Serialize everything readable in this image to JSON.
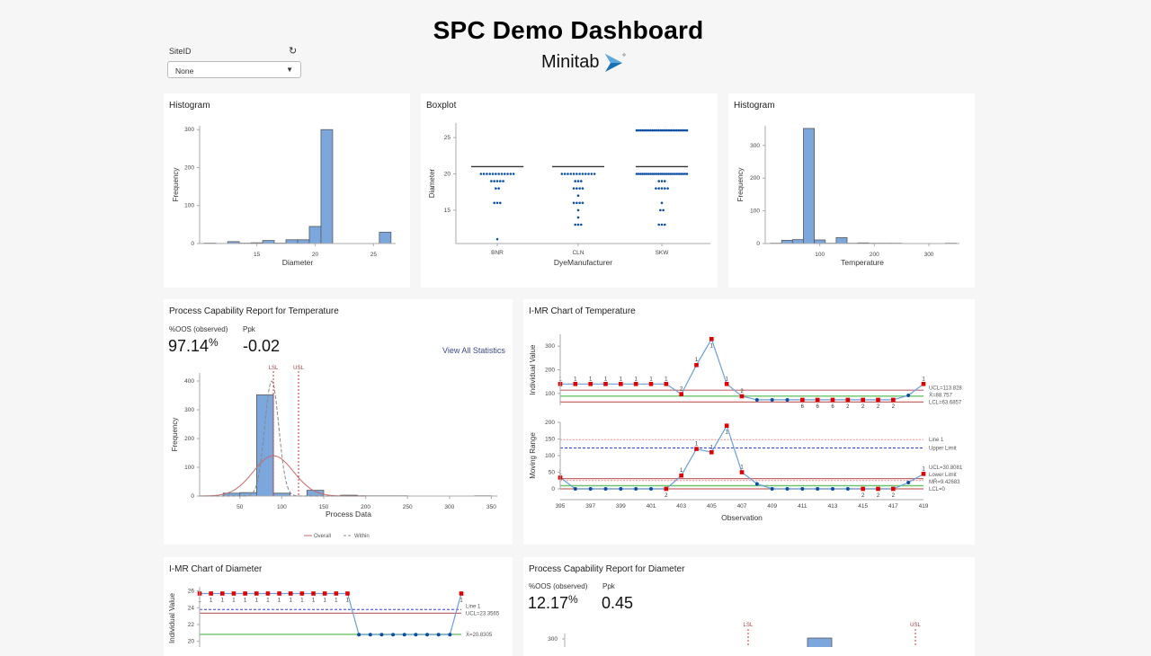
{
  "header": {
    "title": "SPC Demo Dashboard",
    "logo_text": "Minitab",
    "logo_color": "#1b6fb3"
  },
  "filter": {
    "label": "SiteID",
    "refresh_icon": "refresh-icon",
    "selected": "None",
    "caret_icon": "chevron-down-icon"
  },
  "cards": {
    "hist_diameter": {
      "title": "Histogram"
    },
    "boxplot": {
      "title": "Boxplot"
    },
    "hist_temperature": {
      "title": "Histogram"
    },
    "cap_temperature": {
      "title": "Process Capability Report for Temperature",
      "oos_label": "%OOS (observed)",
      "oos_value": "97.14",
      "oos_unit": "%",
      "ppk_label": "Ppk",
      "ppk_value": "-0.02",
      "link": "View All Statistics"
    },
    "imr_temperature": {
      "title": "I-MR Chart of Temperature"
    },
    "imr_diameter": {
      "title": "I-MR Chart of Diameter"
    },
    "cap_diameter": {
      "title": "Process Capability Report for Diameter",
      "oos_label": "%OOS (observed)",
      "oos_value": "12.17",
      "oos_unit": "%",
      "ppk_label": "Ppk",
      "ppk_value": "0.45"
    }
  },
  "colors": {
    "bar": "#7ba7dc",
    "bar_stroke": "#5a5a5a",
    "point": "#0b4fa3",
    "flag_point": "#e00000",
    "series_line": "#6a9fd8",
    "control_limit": "#c46a6a",
    "center_line": "#6cc46c",
    "line1": "#f08a8a",
    "upper_limit": "#3040e0",
    "spec_limit": "#e03030",
    "within_curve": "#888888"
  },
  "chart_data": [
    {
      "id": "hist_diameter",
      "type": "bar",
      "xlabel": "Diameter",
      "ylabel": "Frequency",
      "xlim": [
        10.1,
        26.9
      ],
      "ylim": [
        0,
        310
      ],
      "xticks": [
        15,
        20,
        25
      ],
      "yticks": [
        0,
        100,
        200,
        300
      ],
      "bins": [
        {
          "lo": 10.5,
          "hi": 11.5,
          "count": 1
        },
        {
          "lo": 12.5,
          "hi": 13.5,
          "count": 5
        },
        {
          "lo": 13.5,
          "hi": 14.5,
          "count": 1
        },
        {
          "lo": 14.5,
          "hi": 15.5,
          "count": 2
        },
        {
          "lo": 15.5,
          "hi": 16.5,
          "count": 8
        },
        {
          "lo": 16.5,
          "hi": 17.5,
          "count": 1
        },
        {
          "lo": 17.5,
          "hi": 18.5,
          "count": 10
        },
        {
          "lo": 18.5,
          "hi": 19.5,
          "count": 10
        },
        {
          "lo": 19.5,
          "hi": 20.5,
          "count": 45
        },
        {
          "lo": 20.5,
          "hi": 21.5,
          "count": 300
        },
        {
          "lo": 25.5,
          "hi": 26.5,
          "count": 30
        }
      ]
    },
    {
      "id": "boxplot",
      "type": "scatter",
      "xlabel": "DyeManufacturer",
      "ylabel": "Diameter",
      "ylim": [
        10.4,
        27
      ],
      "yticks": [
        15,
        20,
        25
      ],
      "categories": [
        "BNR",
        "CLN",
        "SKW"
      ],
      "medians": [
        21,
        21,
        21
      ],
      "points": [
        [
          [
            20,
            12
          ],
          [
            19,
            5
          ],
          [
            18,
            2
          ],
          [
            16,
            3
          ],
          [
            11,
            1
          ]
        ],
        [
          [
            20,
            12
          ],
          [
            19,
            3
          ],
          [
            18,
            4
          ],
          [
            17,
            1
          ],
          [
            16,
            4
          ],
          [
            15,
            1
          ],
          [
            14,
            1
          ],
          [
            13,
            3
          ]
        ],
        [
          [
            26,
            26
          ],
          [
            20,
            26
          ],
          [
            19,
            3
          ],
          [
            18,
            5
          ],
          [
            16,
            1
          ],
          [
            15,
            2
          ],
          [
            13,
            3
          ]
        ]
      ]
    },
    {
      "id": "hist_temperature",
      "type": "bar",
      "xlabel": "Temperature",
      "ylabel": "Frequency",
      "xlim": [
        0,
        356
      ],
      "ylim": [
        0,
        360
      ],
      "xticks": [
        100,
        200,
        300
      ],
      "yticks": [
        0,
        100,
        200,
        300
      ],
      "bins": [
        {
          "lo": 10,
          "hi": 30,
          "count": 1
        },
        {
          "lo": 30,
          "hi": 50,
          "count": 10
        },
        {
          "lo": 50,
          "hi": 70,
          "count": 12
        },
        {
          "lo": 70,
          "hi": 90,
          "count": 352
        },
        {
          "lo": 90,
          "hi": 110,
          "count": 11
        },
        {
          "lo": 110,
          "hi": 130,
          "count": 1
        },
        {
          "lo": 130,
          "hi": 150,
          "count": 18
        },
        {
          "lo": 150,
          "hi": 170,
          "count": 1
        },
        {
          "lo": 170,
          "hi": 190,
          "count": 2
        },
        {
          "lo": 190,
          "hi": 210,
          "count": 1
        },
        {
          "lo": 210,
          "hi": 230,
          "count": 1
        },
        {
          "lo": 230,
          "hi": 250,
          "count": 1
        },
        {
          "lo": 330,
          "hi": 350,
          "count": 1
        }
      ]
    },
    {
      "id": "cap_temperature",
      "type": "bar",
      "xlabel": "Process Data",
      "ylabel": "Frequency",
      "xlim": [
        2,
        357
      ],
      "ylim": [
        0,
        428
      ],
      "xticks": [
        50,
        100,
        150,
        200,
        250,
        300,
        350
      ],
      "yticks": [
        0,
        100,
        200,
        300,
        400
      ],
      "bins": [
        {
          "lo": 30,
          "hi": 50,
          "count": 10
        },
        {
          "lo": 50,
          "hi": 70,
          "count": 12
        },
        {
          "lo": 70,
          "hi": 90,
          "count": 352
        },
        {
          "lo": 90,
          "hi": 110,
          "count": 10
        },
        {
          "lo": 130,
          "hi": 150,
          "count": 20
        },
        {
          "lo": 170,
          "hi": 190,
          "count": 3
        },
        {
          "lo": 190,
          "hi": 210,
          "count": 1
        },
        {
          "lo": 210,
          "hi": 230,
          "count": 1
        },
        {
          "lo": 230,
          "hi": 250,
          "count": 1
        },
        {
          "lo": 330,
          "hi": 350,
          "count": 1
        }
      ],
      "spec_limits": [
        {
          "label": "LSL",
          "value": 90
        },
        {
          "label": "USL",
          "value": 120
        }
      ],
      "curves": [
        {
          "name": "Overall",
          "mean": 90,
          "stdev": 24,
          "peak": 140,
          "style": "solid"
        },
        {
          "name": "Within",
          "mean": 88,
          "stdev": 8.4,
          "peak": 400,
          "style": "dashed"
        }
      ],
      "legend_position": "bottom"
    },
    {
      "id": "imr_temperature_individual",
      "type": "line",
      "ylabel": "Individual Value",
      "x": [
        395,
        396,
        397,
        398,
        399,
        400,
        401,
        402,
        403,
        404,
        405,
        406,
        407,
        408,
        409,
        410,
        411,
        412,
        413,
        414,
        415,
        416,
        417,
        418,
        419
      ],
      "values": [
        140,
        140,
        140,
        140,
        140,
        140,
        140,
        140,
        97,
        220,
        330,
        140,
        88,
        73,
        73,
        73,
        73,
        73,
        73,
        73,
        73,
        73,
        73,
        92,
        140
      ],
      "flags": [
        "1",
        "1",
        "1",
        "1",
        "1",
        "1",
        "1",
        "1",
        "2",
        "1",
        "1",
        "1",
        "2",
        "",
        "",
        "",
        "6",
        "6",
        "6",
        "2",
        "2",
        "2",
        "2",
        "",
        "1"
      ],
      "flags_below": [
        false,
        false,
        false,
        false,
        false,
        false,
        false,
        false,
        false,
        false,
        true,
        false,
        false,
        false,
        false,
        false,
        true,
        true,
        true,
        true,
        true,
        true,
        true,
        false,
        false
      ],
      "xlim": [
        395,
        419
      ],
      "ylim": [
        50,
        350
      ],
      "yticks": [
        100,
        200,
        300
      ],
      "control_lines": [
        {
          "label": "UCL=113.828",
          "value": 113.828,
          "kind": "limit"
        },
        {
          "label": "X̄=88.757",
          "value": 88.757,
          "kind": "center"
        },
        {
          "label": "LCL=63.6857",
          "value": 63.6857,
          "kind": "limit"
        }
      ]
    },
    {
      "id": "imr_temperature_mr",
      "type": "line",
      "ylabel": "Moving Range",
      "xlabel": "Observation",
      "x": [
        395,
        396,
        397,
        398,
        399,
        400,
        401,
        402,
        403,
        404,
        405,
        406,
        407,
        408,
        409,
        410,
        411,
        412,
        413,
        414,
        415,
        416,
        417,
        418,
        419
      ],
      "values": [
        34,
        0,
        0,
        0,
        0,
        0,
        0,
        0,
        40,
        120,
        110,
        190,
        50,
        15,
        0,
        0,
        0,
        0,
        0,
        0,
        0,
        0,
        0,
        19,
        45
      ],
      "flags": [
        "1",
        "",
        "",
        "",
        "",
        "",
        "",
        "2",
        "1",
        "1",
        "1",
        "1",
        "1",
        "",
        "",
        "",
        "",
        "",
        "",
        "",
        "2",
        "2",
        "2",
        "",
        "1"
      ],
      "flags_below": [
        false,
        false,
        false,
        false,
        false,
        false,
        false,
        true,
        false,
        false,
        false,
        true,
        false,
        false,
        false,
        false,
        false,
        false,
        false,
        false,
        true,
        true,
        true,
        false,
        false
      ],
      "xlim": [
        395,
        419
      ],
      "ylim": [
        0,
        200
      ],
      "yticks": [
        0,
        50,
        100,
        150,
        200
      ],
      "xticks": [
        395,
        397,
        399,
        401,
        403,
        405,
        407,
        409,
        411,
        413,
        415,
        417,
        419
      ],
      "control_lines": [
        {
          "label": "Line 1",
          "value": 148,
          "kind": "line1"
        },
        {
          "label": "Upper Limit",
          "value": 123,
          "kind": "upper"
        },
        {
          "label": "UCL=30.8081",
          "value": 30.8081,
          "kind": "limit"
        },
        {
          "label": "Lower Limit",
          "value": 25,
          "kind": "line1"
        },
        {
          "label": "MR̄=9.42683",
          "value": 9.42683,
          "kind": "center"
        },
        {
          "label": "LCL=0",
          "value": 0,
          "kind": "limit"
        }
      ]
    },
    {
      "id": "imr_diameter_individual",
      "type": "line",
      "ylabel": "Individual Value",
      "values": [
        25.7,
        25.7,
        25.7,
        25.7,
        25.7,
        25.7,
        25.7,
        25.7,
        25.7,
        25.7,
        25.7,
        25.7,
        25.7,
        25.7,
        20.8,
        20.8,
        20.8,
        20.8,
        20.8,
        20.8,
        20.8,
        20.8,
        20.8,
        25.7
      ],
      "flags": [
        "1",
        "1",
        "1",
        "1",
        "1",
        "1",
        "1",
        "1",
        "1",
        "1",
        "1",
        "1",
        "1",
        "1",
        "",
        "",
        "",
        "",
        "",
        "",
        "",
        "",
        "",
        "1"
      ],
      "ylim": [
        19,
        26.5
      ],
      "yticks": [
        20,
        22,
        24,
        26
      ],
      "control_lines": [
        {
          "label": "Line 1",
          "value": 23.8,
          "kind": "upper"
        },
        {
          "label": "UCL=23.3565",
          "value": 23.3565,
          "kind": "limit"
        },
        {
          "label": "X̄=20.8305",
          "value": 20.8305,
          "kind": "center"
        }
      ]
    },
    {
      "id": "cap_diameter",
      "type": "bar",
      "yticks": [
        300
      ],
      "spec_limits": [
        {
          "label": "LSL"
        },
        {
          "label": "USL"
        }
      ]
    }
  ]
}
